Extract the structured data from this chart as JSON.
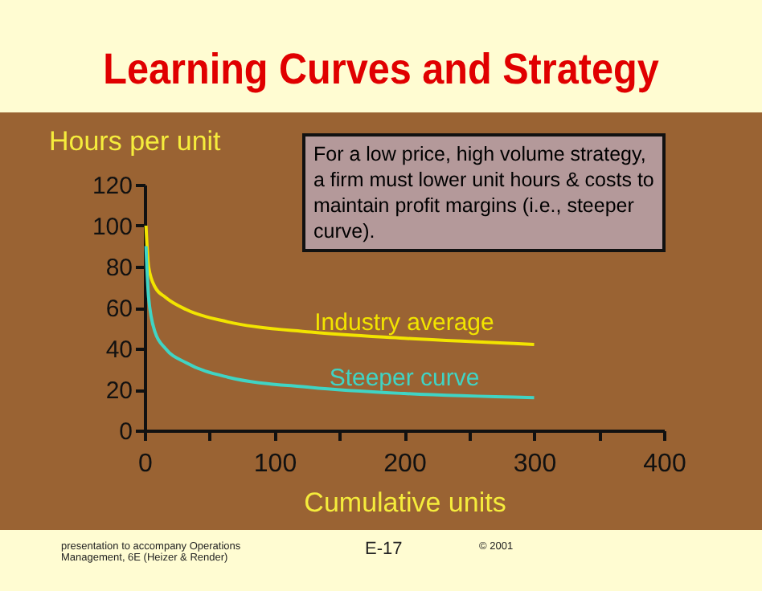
{
  "chart_data": {
    "type": "line",
    "title": "Learning Curves and Strategy",
    "xlabel": "Cumulative units",
    "ylabel": "Hours per unit",
    "annotations": [
      "For a low price, high volume strategy, a firm must lower unit hours & costs to maintain profit margins (i.e., steeper curve).",
      "presentation to accompany Operations Management, 6E (Heizer & Render)",
      "E-17",
      "© 2001"
    ],
    "x": [
      1,
      3,
      8,
      16,
      32,
      64,
      128,
      200,
      300
    ],
    "series": [
      {
        "name": "Industry average",
        "color": "#f2e400",
        "values": [
          100,
          80,
          70,
          65,
          59,
          53,
          48,
          45,
          42
        ]
      },
      {
        "name": "Steeper curve",
        "color": "#40d4c4",
        "values": [
          90,
          65,
          48,
          40,
          33,
          26,
          21,
          18,
          16
        ]
      }
    ],
    "xlim": [
      0,
      400
    ],
    "xticks": [
      0,
      {
        "value": 50,
        "label": null
      },
      100,
      {
        "value": 150,
        "label": null
      },
      200,
      {
        "value": 250,
        "label": null
      },
      300,
      {
        "value": 350,
        "label": null
      },
      400
    ],
    "ylim": [
      0,
      120
    ],
    "yticks": [
      0,
      20,
      40,
      60,
      80,
      100,
      120
    ],
    "grid": false,
    "legend": false,
    "marker": "none",
    "line_style": "solid"
  }
}
